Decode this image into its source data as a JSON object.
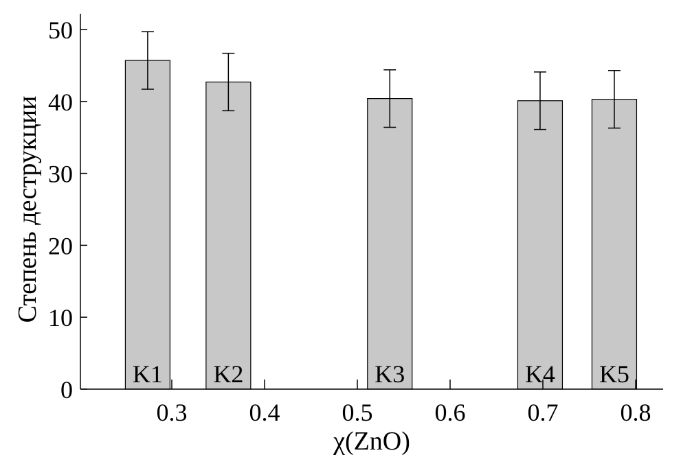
{
  "chart_data": {
    "type": "bar",
    "title": "",
    "xlabel": "χ(ZnO)",
    "ylabel": "Степень деструкции",
    "xlim": [
      0.2,
      0.83
    ],
    "ylim": [
      0,
      50
    ],
    "xticks": [
      "0.3",
      "0.4",
      "0.5",
      "0.6",
      "0.7",
      "0.8"
    ],
    "yticks": [
      "0",
      "10",
      "20",
      "30",
      "40",
      "50"
    ],
    "grid": false,
    "bar_color": "#c8c8c8",
    "bars": [
      {
        "label": "K1",
        "x": 0.274,
        "value": 45.7,
        "error": 4.0
      },
      {
        "label": "K2",
        "x": 0.361,
        "value": 42.7,
        "error": 4.0
      },
      {
        "label": "K3",
        "x": 0.535,
        "value": 40.4,
        "error": 4.0
      },
      {
        "label": "K4",
        "x": 0.697,
        "value": 40.1,
        "error": 4.0
      },
      {
        "label": "K5",
        "x": 0.777,
        "value": 40.3,
        "error": 4.0
      }
    ]
  }
}
